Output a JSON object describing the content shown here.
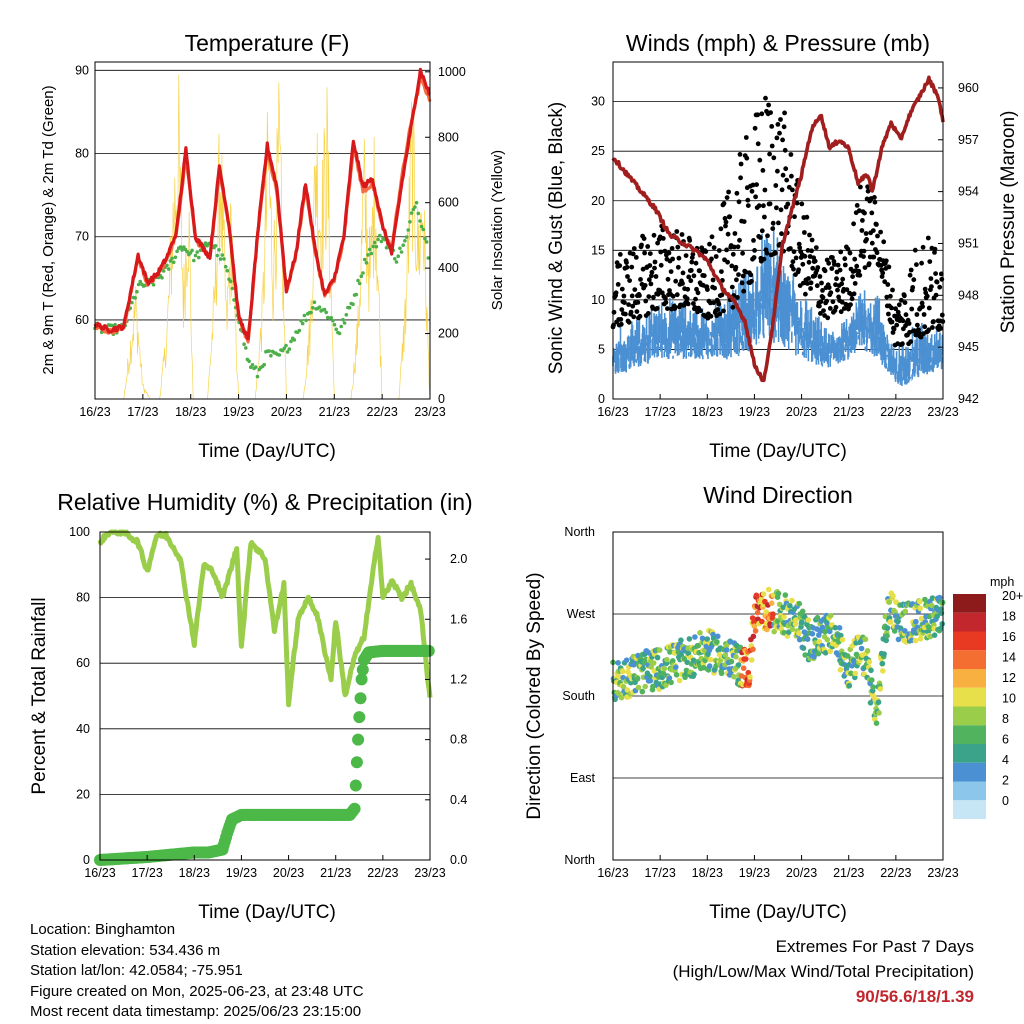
{
  "footer": {
    "location": "Location: Binghamton",
    "elevation": "Station elevation: 534.436 m",
    "latlon": "Station lat/lon: 42.0584; -75.951",
    "created": "Figure created on Mon, 2025-06-23, at 23:48 UTC",
    "recent": "Most recent data timestamp: 2025/06/23 23:15:00"
  },
  "extremes": {
    "line1": "Extremes For Past 7 Days",
    "line2": "(High/Low/Max Wind/Total Precipitation)",
    "values": "90/56.6/18/1.39"
  },
  "colors": {
    "temp9m": "#d7191c",
    "temp2m": "#f46d43",
    "dewpoint": "#4daf4a",
    "insolation": "#f7d34a",
    "wind": "#4a90d2",
    "gust": "#000000",
    "pressure": "#a01e1e",
    "rh": "#9acd4a",
    "precip": "#4cb848"
  },
  "chart_data": [
    {
      "type": "line",
      "title": "Temperature (F)",
      "xlabel": "Time (Day/UTC)",
      "ylabel": "2m & 9m T (Red, Orange) & 2m Td (Green)",
      "y2label": "Solar Insolation (Yellow)",
      "x_ticks": [
        "16/23",
        "17/23",
        "18/23",
        "19/23",
        "20/23",
        "21/23",
        "22/23",
        "23/23"
      ],
      "y_ticks": [
        60,
        70,
        80,
        90
      ],
      "y2_ticks": [
        0,
        200,
        400,
        600,
        800,
        1000
      ],
      "ylim": [
        50.5,
        91
      ],
      "y2lim": [
        0,
        1030
      ],
      "grid": true,
      "series": [
        {
          "key": "temp9m",
          "axis": "left",
          "x": [
            0,
            0.3,
            0.6,
            0.9,
            1.1,
            1.3,
            1.5,
            1.7,
            1.9,
            2.1,
            2.4,
            2.6,
            2.8,
            3.0,
            3.2,
            3.4,
            3.6,
            3.8,
            4.0,
            4.2,
            4.4,
            4.6,
            4.8,
            5.0,
            5.2,
            5.4,
            5.6,
            5.8,
            6.0,
            6.2,
            6.4,
            6.6,
            6.8,
            7.0
          ],
          "y": [
            59.5,
            58.8,
            59.2,
            67.8,
            64.5,
            65.5,
            67.5,
            70.5,
            80.5,
            70.0,
            67.5,
            78.5,
            71.5,
            60.5,
            57.5,
            70.5,
            81.0,
            76.0,
            63.5,
            68.0,
            76.5,
            68.5,
            63.0,
            65.0,
            70.0,
            81.5,
            76.0,
            77.0,
            71.5,
            68.0,
            76.0,
            83.0,
            90.0,
            87.0
          ]
        },
        {
          "key": "temp2m",
          "axis": "left",
          "x": [
            0,
            0.3,
            0.6,
            0.9,
            1.1,
            1.3,
            1.5,
            1.7,
            1.9,
            2.1,
            2.4,
            2.6,
            2.8,
            3.0,
            3.2,
            3.4,
            3.6,
            3.8,
            4.0,
            4.2,
            4.4,
            4.6,
            4.8,
            5.0,
            5.2,
            5.4,
            5.6,
            5.8,
            6.0,
            6.2,
            6.4,
            6.6,
            6.8,
            7.0
          ],
          "y": [
            59.3,
            58.6,
            59.0,
            67.5,
            64.3,
            65.3,
            67.3,
            70.3,
            79.8,
            69.8,
            67.3,
            77.8,
            71.3,
            60.3,
            57.3,
            70.3,
            80.3,
            75.5,
            63.3,
            67.8,
            75.8,
            68.3,
            62.8,
            64.8,
            69.8,
            80.8,
            75.5,
            76.3,
            71.3,
            68.5,
            76.8,
            83.5,
            89.0,
            86.5
          ]
        },
        {
          "key": "dewpoint",
          "axis": "left",
          "x": [
            0,
            0.3,
            0.6,
            0.9,
            1.2,
            1.5,
            1.8,
            2.1,
            2.4,
            2.7,
            3.0,
            3.2,
            3.4,
            3.6,
            3.8,
            4.0,
            4.3,
            4.6,
            4.9,
            5.1,
            5.4,
            5.7,
            6.0,
            6.3,
            6.5,
            6.7,
            6.9,
            7.0
          ],
          "y": [
            59.0,
            58.8,
            59.0,
            64.0,
            64.5,
            66.0,
            69.0,
            67.5,
            69.5,
            67.0,
            60.5,
            55.0,
            53.5,
            56.0,
            55.5,
            56.5,
            59.5,
            62.0,
            60.5,
            58.5,
            62.5,
            68.0,
            70.0,
            67.5,
            69.5,
            74.5,
            70.0,
            67.0
          ]
        },
        {
          "key": "insolation",
          "axis": "right",
          "x": [
            0.6,
            0.85,
            1.0,
            1.15,
            1.35,
            1.5,
            1.62,
            1.75,
            1.85,
            1.95,
            2.05,
            2.2,
            2.35,
            2.5,
            2.62,
            2.75,
            2.85,
            3.0,
            3.2,
            3.35,
            3.5,
            3.62,
            3.72,
            3.85,
            4.0,
            4.2,
            4.35,
            4.5,
            4.62,
            4.72,
            4.85,
            5.0,
            5.2,
            5.35,
            5.5,
            5.62,
            5.75,
            5.85,
            6.0,
            6.2,
            6.35,
            6.5,
            6.62,
            6.75,
            6.85,
            7.0
          ],
          "y": [
            0,
            380,
            50,
            0,
            0,
            250,
            700,
            1020,
            400,
            800,
            0,
            0,
            0,
            400,
            950,
            300,
            700,
            0,
            0,
            0,
            350,
            1000,
            500,
            1020,
            0,
            0,
            0,
            300,
            1000,
            700,
            1000,
            0,
            0,
            0,
            300,
            850,
            500,
            900,
            0,
            0,
            0,
            400,
            1030,
            600,
            800,
            0
          ]
        }
      ]
    },
    {
      "type": "scatter",
      "title": "Winds (mph) & Pressure (mb)",
      "xlabel": "Time (Day/UTC)",
      "ylabel": "Sonic Wind & Gust (Blue, Black)",
      "y2label": "Station Pressure (Maroon)",
      "x_ticks": [
        "16/23",
        "17/23",
        "18/23",
        "19/23",
        "20/23",
        "21/23",
        "22/23",
        "23/23"
      ],
      "y_ticks": [
        0,
        5,
        10,
        15,
        20,
        25,
        30
      ],
      "y2_ticks": [
        942,
        945,
        948,
        951,
        954,
        957,
        960
      ],
      "ylim": [
        0,
        34
      ],
      "y2lim": [
        942,
        961.5
      ],
      "grid": true,
      "series": [
        {
          "key": "pressure",
          "axis": "right",
          "x": [
            0,
            0.3,
            0.6,
            0.9,
            1.2,
            1.5,
            1.8,
            2.0,
            2.3,
            2.6,
            2.8,
            3.0,
            3.2,
            3.4,
            3.6,
            3.8,
            4.0,
            4.2,
            4.4,
            4.6,
            4.8,
            5.0,
            5.2,
            5.4,
            5.5,
            5.7,
            5.9,
            6.1,
            6.3,
            6.5,
            6.7,
            6.9,
            7.0
          ],
          "y": [
            956.0,
            955.0,
            954.0,
            953.0,
            951.5,
            951.0,
            950.5,
            950.0,
            948.5,
            947.5,
            946.5,
            944.0,
            943.0,
            946.5,
            951.0,
            953.0,
            955.0,
            957.5,
            958.5,
            956.5,
            957.0,
            956.5,
            954.5,
            955.0,
            954.0,
            956.5,
            958.0,
            957.0,
            958.5,
            959.5,
            960.5,
            959.5,
            958.0
          ]
        },
        {
          "key": "gust",
          "axis": "left",
          "envelope": {
            "x": [
              0,
              0.5,
              1.0,
              1.5,
              2.0,
              2.5,
              3.0,
              3.3,
              3.6,
              4.0,
              4.5,
              5.0,
              5.3,
              5.6,
              6.0,
              6.5,
              7.0
            ],
            "low": [
              7,
              8,
              9,
              9,
              8,
              9,
              12,
              14,
              15,
              11,
              8,
              9,
              13,
              14,
              5,
              6,
              7
            ],
            "high": [
              14,
              16,
              18,
              17,
              15,
              22,
              29,
              32,
              30,
              20,
              14,
              16,
              23,
              20,
              10,
              17,
              16
            ]
          }
        },
        {
          "key": "wind",
          "axis": "left",
          "envelope": {
            "x": [
              0,
              0.5,
              1.0,
              1.5,
              2.0,
              2.5,
              3.0,
              3.3,
              3.6,
              4.0,
              4.5,
              5.0,
              5.3,
              5.6,
              6.0,
              6.5,
              7.0
            ],
            "low": [
              2,
              3,
              4,
              4,
              4,
              4,
              5,
              6,
              5,
              4,
              3,
              4,
              5,
              4,
              1,
              2,
              3
            ],
            "high": [
              7,
              8,
              10,
              10,
              9,
              11,
              14,
              18,
              15,
              11,
              7,
              8,
              12,
              11,
              5,
              8,
              7
            ]
          }
        }
      ]
    },
    {
      "type": "line",
      "title": "Relative Humidity (%) & Precipitation (in)",
      "xlabel": "Time (Day/UTC)",
      "ylabel": "Percent & Total Rainfall",
      "x_ticks": [
        "16/23",
        "17/23",
        "18/23",
        "19/23",
        "20/23",
        "21/23",
        "22/23",
        "23/23"
      ],
      "y_ticks": [
        0,
        20,
        40,
        60,
        80,
        100
      ],
      "y2_ticks": [
        "0.0",
        "0.4",
        "0.8",
        "1.2",
        "1.6",
        "2.0"
      ],
      "ylim": [
        0,
        100
      ],
      "y2lim": [
        0,
        2.18
      ],
      "grid": true,
      "series": [
        {
          "key": "rh",
          "axis": "left",
          "x": [
            0,
            0.2,
            0.5,
            0.8,
            1.0,
            1.2,
            1.4,
            1.7,
            2.0,
            2.2,
            2.4,
            2.6,
            2.9,
            3.0,
            3.2,
            3.5,
            3.7,
            3.9,
            4.0,
            4.2,
            4.4,
            4.6,
            4.9,
            5.0,
            5.2,
            5.4,
            5.6,
            5.9,
            6.0,
            6.2,
            6.4,
            6.6,
            6.8,
            7.0
          ],
          "y": [
            97,
            100,
            100,
            97,
            88,
            99,
            99,
            92,
            66,
            90,
            88,
            80,
            95,
            65,
            97,
            92,
            70,
            84,
            48,
            73,
            80,
            75,
            55,
            73,
            50,
            62,
            68,
            99,
            80,
            85,
            80,
            84,
            76,
            49
          ]
        },
        {
          "key": "precip",
          "axis": "right",
          "x": [
            0,
            1.0,
            2.0,
            2.3,
            2.6,
            2.7,
            2.8,
            3.0,
            4.0,
            5.0,
            5.3,
            5.4,
            5.45,
            5.5,
            5.55,
            5.6,
            5.7,
            6.0,
            7.0
          ],
          "y": [
            0.0,
            0.02,
            0.05,
            0.05,
            0.07,
            0.18,
            0.27,
            0.3,
            0.3,
            0.3,
            0.3,
            0.34,
            0.65,
            0.95,
            1.2,
            1.33,
            1.38,
            1.39,
            1.39
          ]
        }
      ]
    },
    {
      "type": "scatter",
      "title": "Wind Direction",
      "xlabel": "Time (Day/UTC)",
      "ylabel": "Direction (Colored By Speed)",
      "x_ticks": [
        "16/23",
        "17/23",
        "18/23",
        "19/23",
        "20/23",
        "21/23",
        "22/23",
        "23/23"
      ],
      "y_ticks": [
        "North",
        "East",
        "South",
        "West",
        "North"
      ],
      "grid": true,
      "colorbar": {
        "title": "mph",
        "labels": [
          "0",
          "2",
          "4",
          "6",
          "8",
          "10",
          "12",
          "14",
          "16",
          "18",
          "20+"
        ],
        "colors": [
          "#c6e6f5",
          "#8cc6ea",
          "#4a90d2",
          "#3aa38a",
          "#52b35e",
          "#9acd4a",
          "#e8e04a",
          "#f8b040",
          "#f46d31",
          "#e83a22",
          "#c1272d",
          "#8e1b1b"
        ]
      },
      "points": {
        "x": [
          0,
          0.5,
          1.0,
          1.5,
          2.0,
          2.3,
          2.6,
          2.9,
          3.0,
          3.3,
          3.6,
          3.9,
          4.0,
          4.2,
          4.4,
          4.7,
          5.0,
          5.2,
          5.4,
          5.5,
          5.6,
          5.75,
          5.9,
          6.0,
          6.3,
          6.6,
          6.9,
          7.0
        ],
        "y": [
          195,
          205,
          210,
          220,
          230,
          225,
          215,
          210,
          270,
          275,
          270,
          265,
          255,
          235,
          250,
          245,
          210,
          225,
          220,
          180,
          160,
          240,
          285,
          265,
          260,
          265,
          270,
          260
        ]
      }
    }
  ]
}
